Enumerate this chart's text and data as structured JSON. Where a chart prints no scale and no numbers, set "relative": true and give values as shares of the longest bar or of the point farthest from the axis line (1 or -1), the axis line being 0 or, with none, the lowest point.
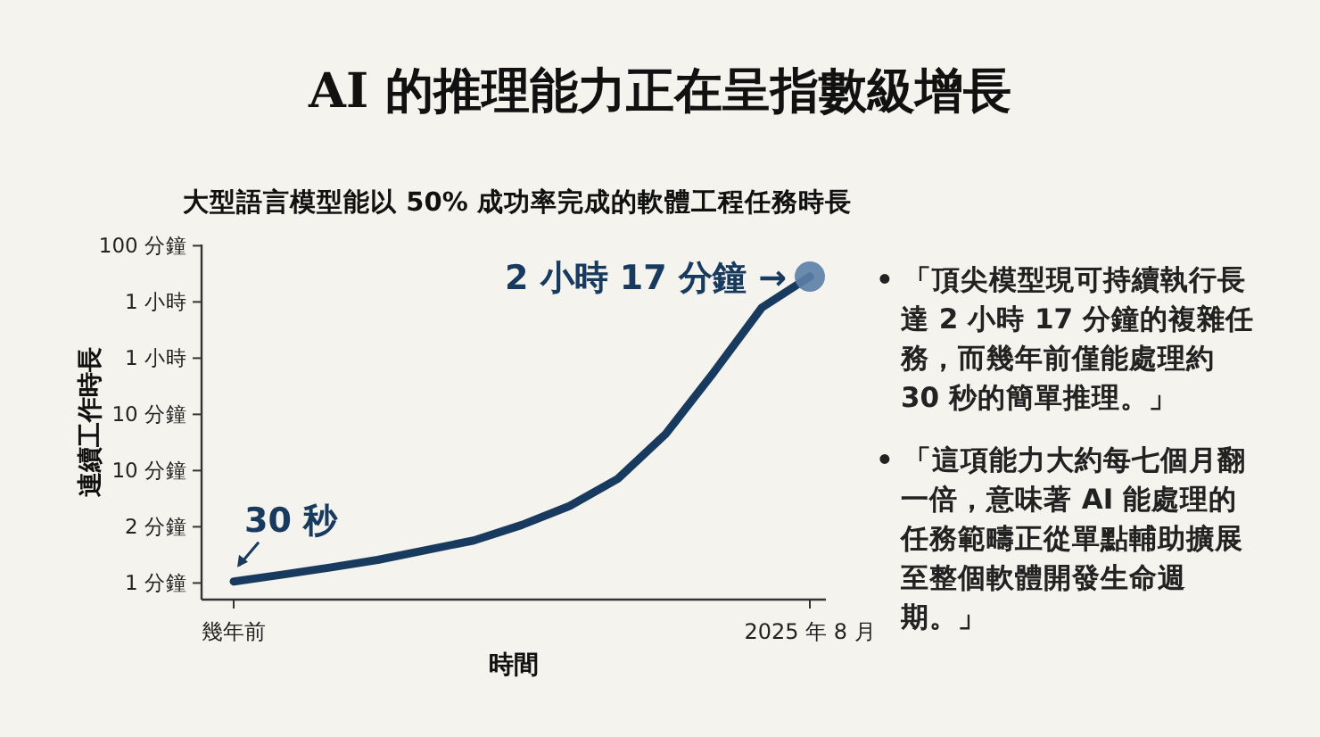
{
  "chart_data": {
    "type": "line",
    "title": "AI 的推理能力正在呈指數級增長",
    "subtitle": "大型語言模型能以 50% 成功率完成的軟體工程任務時長",
    "xlabel": "時間",
    "ylabel": "連續工作時長",
    "relative": true,
    "categories": [
      "幾年前",
      null,
      null,
      null,
      null,
      null,
      null,
      null,
      null,
      null,
      null,
      null,
      "2025 年 8 月"
    ],
    "series": [
      {
        "color": "#173a5e",
        "values": [
          0.056,
          0.077,
          0.099,
          0.123,
          0.153,
          0.183,
          0.231,
          0.29,
          0.374,
          0.513,
          0.704,
          0.904,
          1.0
        ]
      },
      {
        "type": "scatter",
        "color": "#5b7fa6",
        "marker": "circle",
        "values": [
          null,
          null,
          null,
          null,
          null,
          null,
          null,
          null,
          null,
          null,
          null,
          null,
          1.0
        ]
      }
    ],
    "annotations": [
      {
        "text": "30 秒",
        "x": "幾年前",
        "y": 0.056
      },
      {
        "text": "2 小時 17 分鐘 →",
        "x": "2025 年 8 月",
        "y": 1.0
      },
      "100 分鐘",
      "1 小時",
      "1 小時",
      "10 分鐘",
      "10 分鐘",
      "2 分鐘",
      "1 分鐘",
      "• 「頂尖模型現可持續執行長達 2 小時 17 分鐘的複雜任務，而幾年前僅能處理約 30 秒的簡單推理。」",
      "• 「這項能力大約每七個月翻一倍，意味著 AI 能處理的任務範疇正從單點輔助擴展至整個軟體開發生命週期。」"
    ]
  }
}
